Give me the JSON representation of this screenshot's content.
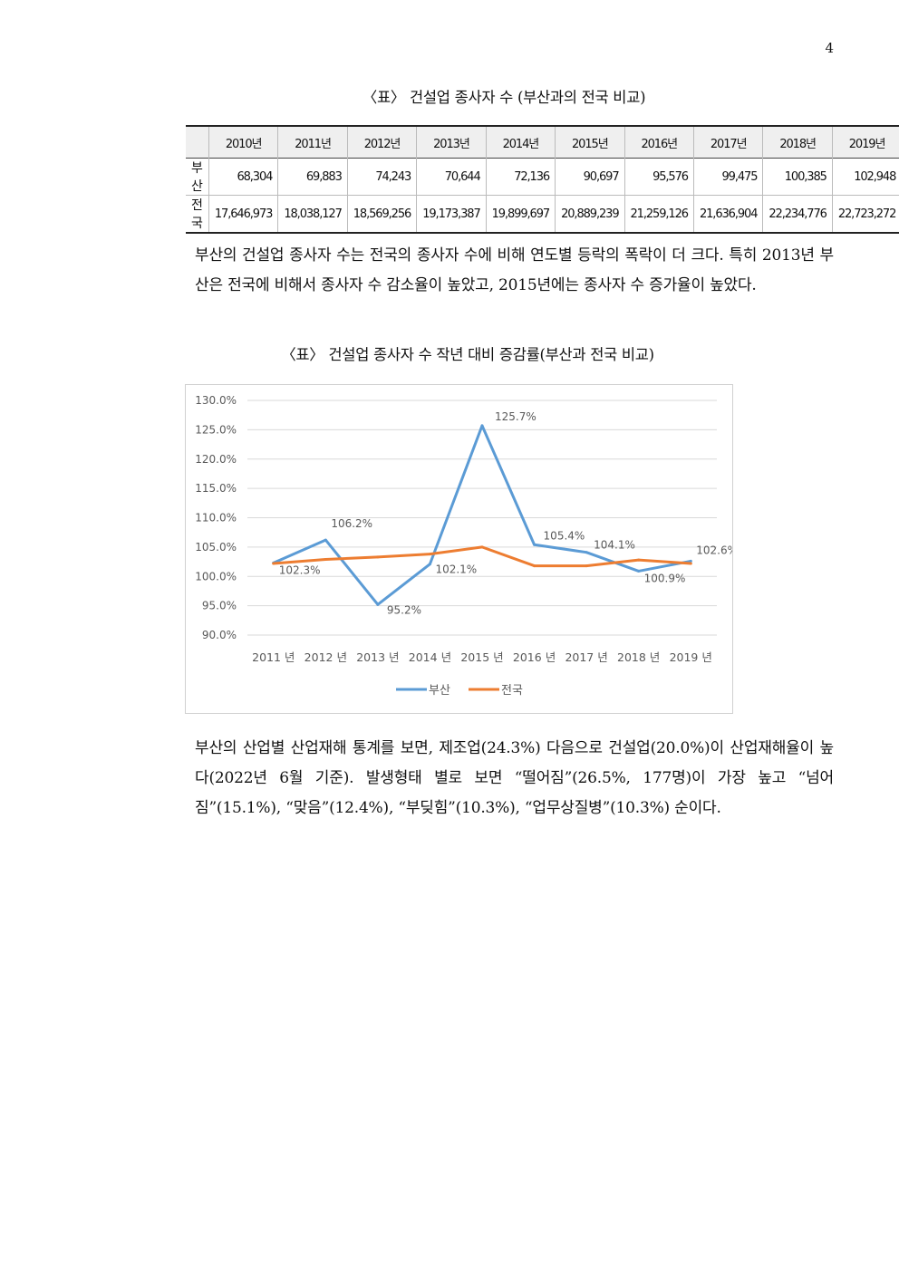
{
  "page_number": "4",
  "table_caption": "〈표〉 건설업 종사자 수 (부산과의 전국 비교)",
  "table": {
    "corner": "",
    "columns": [
      "2010년",
      "2011년",
      "2012년",
      "2013년",
      "2014년",
      "2015년",
      "2016년",
      "2017년",
      "2018년",
      "2019년"
    ],
    "rows": [
      {
        "label": "부산",
        "values": [
          "68,304",
          "69,883",
          "74,243",
          "70,644",
          "72,136",
          "90,697",
          "95,576",
          "99,475",
          "100,385",
          "102,948"
        ]
      },
      {
        "label": "전국",
        "values": [
          "17,646,973",
          "18,038,127",
          "18,569,256",
          "19,173,387",
          "19,899,697",
          "20,889,239",
          "21,259,126",
          "21,636,904",
          "22,234,776",
          "22,723,272"
        ]
      }
    ]
  },
  "paragraph1": "부산의 건설업 종사자 수는 전국의 종사자 수에 비해 연도별 등락의 폭락이 더 크다. 특히 2013년 부산은 전국에 비해서 종사자 수 감소율이 높았고, 2015년에는 종사자 수 증가율이 높았다.",
  "chart_caption": "〈표〉 건설업 종사자 수 작년 대비 증감률(부산과 전국 비교)",
  "chart_data": {
    "type": "line",
    "title": "",
    "xlabel": "",
    "ylabel": "",
    "categories": [
      "2011 년",
      "2012 년",
      "2013 년",
      "2014 년",
      "2015 년",
      "2016 년",
      "2017 년",
      "2018 년",
      "2019 년"
    ],
    "y_ticks": [
      "90.0%",
      "95.0%",
      "100.0%",
      "105.0%",
      "110.0%",
      "115.0%",
      "120.0%",
      "125.0%",
      "130.0%"
    ],
    "ylim": [
      90,
      130
    ],
    "grid": true,
    "legend_position": "bottom",
    "series": [
      {
        "name": "부산",
        "color": "#5b9bd5",
        "values": [
          102.3,
          106.2,
          95.2,
          102.1,
          125.7,
          105.4,
          104.1,
          100.9,
          102.6
        ],
        "labels": [
          "102.3%",
          "106.2%",
          "95.2%",
          "102.1%",
          "125.7%",
          "105.4%",
          "104.1%",
          "100.9%",
          "102.6%"
        ]
      },
      {
        "name": "전국",
        "color": "#ed7d31",
        "values": [
          102.2,
          102.9,
          103.3,
          103.8,
          105.0,
          101.8,
          101.8,
          102.8,
          102.2
        ]
      }
    ]
  },
  "paragraph2": "부산의 산업별 산업재해 통계를 보면, 제조업(24.3%) 다음으로 건설업(20.0%)이 산업재해율이 높다(2022년 6월 기준). 발생형태 별로 보면 “떨어짐”(26.5%, 177명)이 가장 높고 “넘어짐”(15.1%), “맞음”(12.4%), “부딪힘”(10.3%), “업무상질병”(10.3%) 순이다."
}
